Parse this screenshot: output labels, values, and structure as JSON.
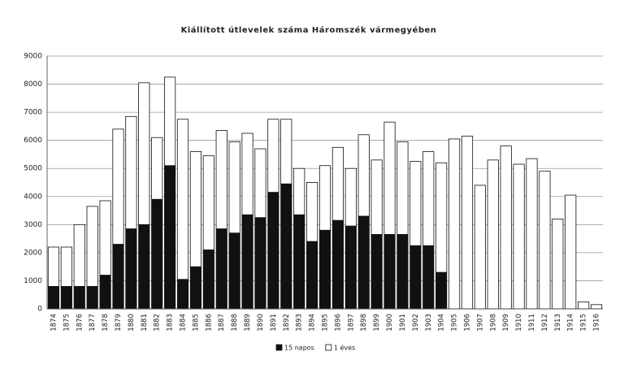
{
  "chart_data": {
    "type": "stacked-bar",
    "title": "Kiállított útlevelek száma Háromszék vármegyében",
    "categories": [
      "1874",
      "1875",
      "1876",
      "1877",
      "1878",
      "1879",
      "1880",
      "1881",
      "1882",
      "1883",
      "1884",
      "1885",
      "1886",
      "1887",
      "1888",
      "1889",
      "1890",
      "1891",
      "1892",
      "1893",
      "1894",
      "1895",
      "1896",
      "1897",
      "1898",
      "1899",
      "1900",
      "1901",
      "1902",
      "1903",
      "1904",
      "1905",
      "1906",
      "1907",
      "1908",
      "1909",
      "1910",
      "1911",
      "1912",
      "1913",
      "1914",
      "1915",
      "1916"
    ],
    "series": [
      {
        "name": "15 napos",
        "color": "#111111",
        "values": [
          800,
          800,
          800,
          800,
          1200,
          2300,
          2850,
          3000,
          3900,
          5100,
          1050,
          1500,
          2100,
          2850,
          2700,
          3350,
          3250,
          4150,
          4450,
          3350,
          2400,
          2800,
          3150,
          2950,
          3300,
          2650,
          2650,
          2650,
          2250,
          2250,
          1300,
          0,
          0,
          0,
          0,
          0,
          0,
          0,
          0,
          0,
          0,
          0,
          0
        ]
      },
      {
        "name": "1 éves",
        "color": "#ffffff",
        "values": [
          1400,
          1400,
          2200,
          2850,
          2650,
          4100,
          4000,
          5050,
          2200,
          3150,
          5700,
          4100,
          3350,
          3500,
          3250,
          2900,
          2450,
          2600,
          2300,
          1650,
          2100,
          2300,
          2600,
          2050,
          2900,
          2650,
          4000,
          3300,
          3000,
          3350,
          3900,
          6050,
          6150,
          4400,
          5300,
          5800,
          5150,
          5350,
          4900,
          3200,
          4050,
          250,
          150
        ]
      }
    ],
    "ylim": [
      0,
      9000
    ],
    "yticks": [
      0,
      1000,
      2000,
      3000,
      4000,
      5000,
      6000,
      7000,
      8000,
      9000
    ],
    "grid": true,
    "legend": "bottom"
  }
}
